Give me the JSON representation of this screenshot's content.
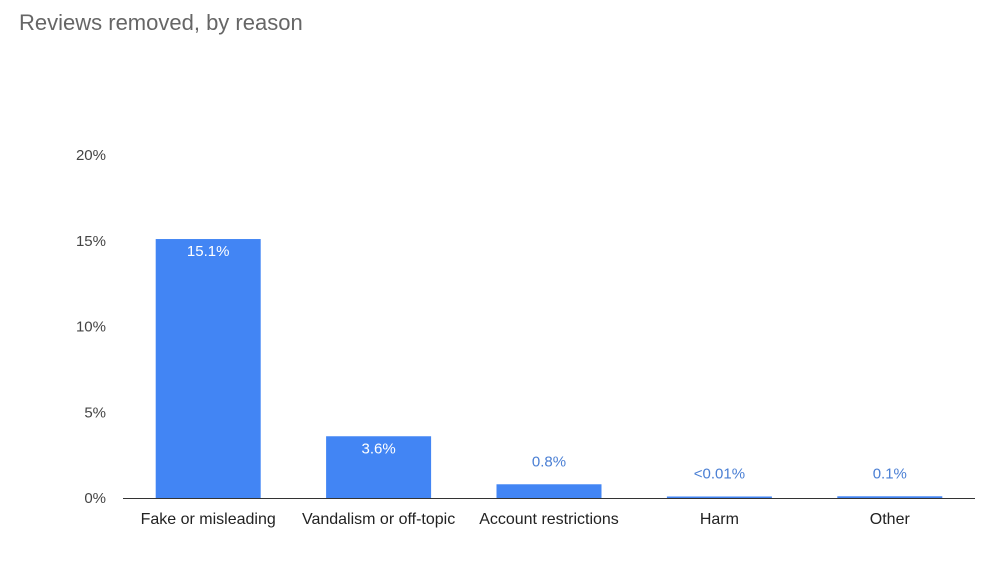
{
  "chart_data": {
    "type": "bar",
    "title": "Reviews removed, by reason",
    "xlabel": "",
    "ylabel": "",
    "categories": [
      "Fake or misleading",
      "Vandalism or off-topic",
      "Account restrictions",
      "Harm",
      "Other"
    ],
    "values": [
      15.1,
      3.6,
      0.8,
      0.005,
      0.1
    ],
    "data_labels": [
      "15.1%",
      "3.6%",
      "0.8%",
      "<0.01%",
      "0.1%"
    ],
    "ylim": [
      0,
      20
    ],
    "yticks": [
      0,
      5,
      10,
      15,
      20
    ],
    "ytick_labels": [
      "0%",
      "5%",
      "10%",
      "15%",
      "20%"
    ],
    "grid": false,
    "legend": "none"
  },
  "colors": {
    "bar": "#4285f4",
    "label_inside": "#ffffff",
    "label_outside": "#4a7fd4",
    "axis_line": "#333333",
    "tick_text": "#444444",
    "category_text": "#222222",
    "title": "#666666"
  }
}
